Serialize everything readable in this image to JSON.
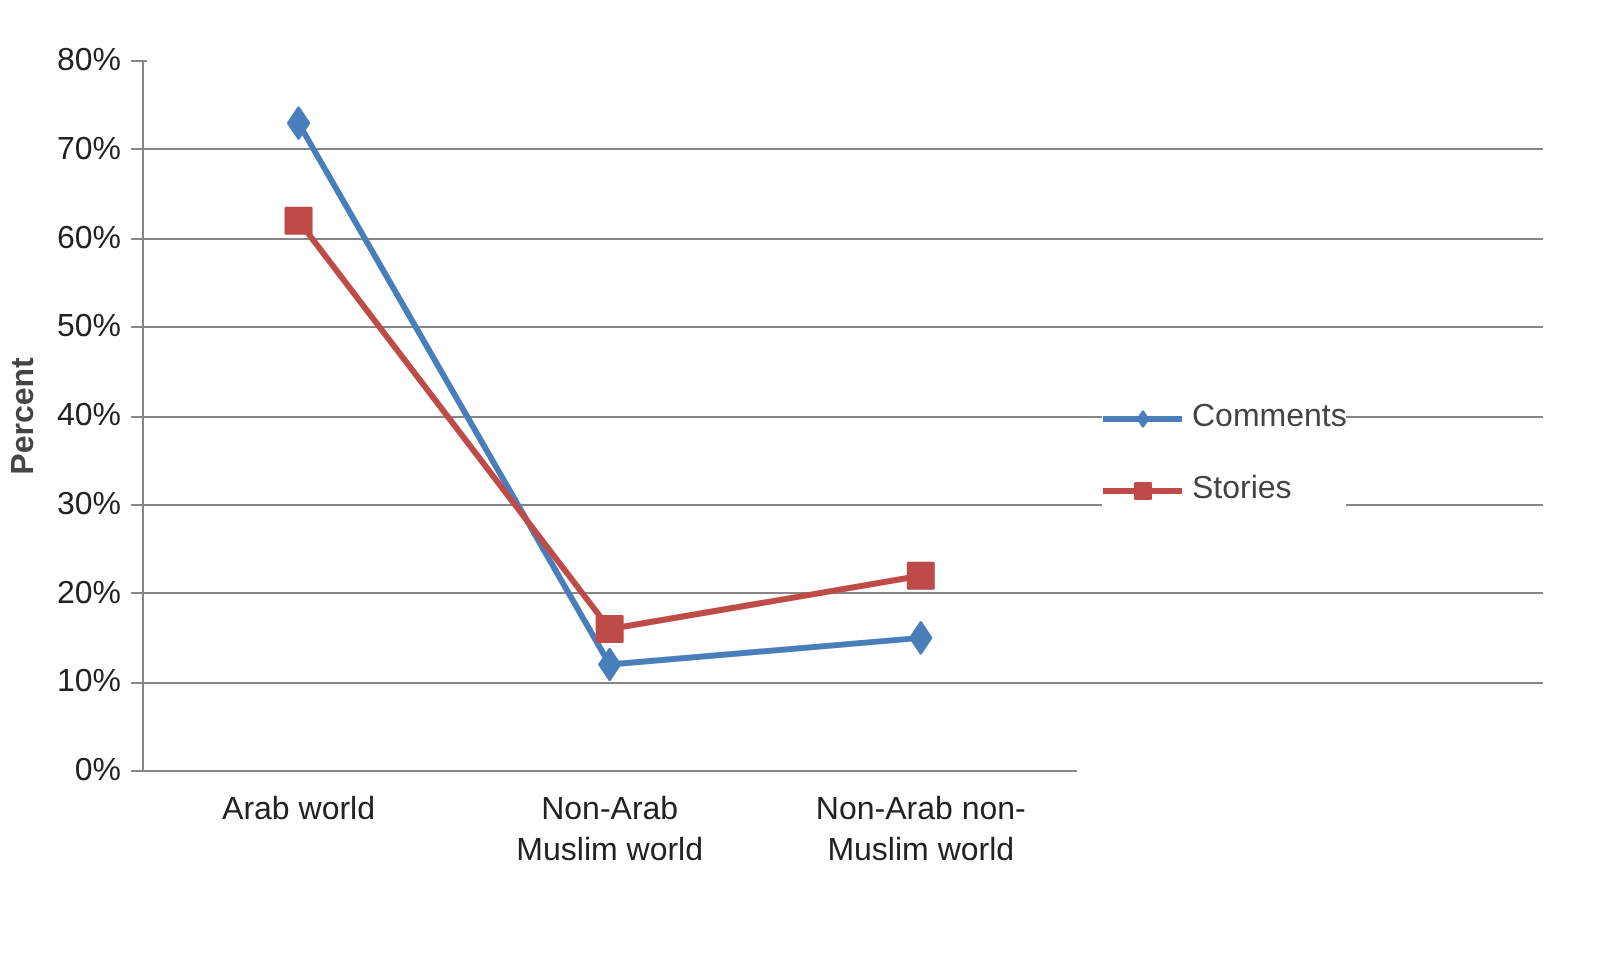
{
  "chart_data": {
    "type": "line",
    "ylabel": "Percent",
    "categories": [
      "Arab world",
      "Non-Arab Muslim world",
      "Non-Arab non-Muslim world"
    ],
    "series": [
      {
        "name": "Comments",
        "color": "#4a7ebb",
        "marker": "diamond",
        "values": [
          73,
          12,
          15
        ]
      },
      {
        "name": "Stories",
        "color": "#be4b48",
        "marker": "square",
        "values": [
          62,
          16,
          22
        ]
      }
    ],
    "ylim": [
      0,
      80
    ],
    "yticks": [
      {
        "value": 0,
        "label": "0%"
      },
      {
        "value": 10,
        "label": "10%"
      },
      {
        "value": 20,
        "label": "20%"
      },
      {
        "value": 30,
        "label": "30%"
      },
      {
        "value": 40,
        "label": "40%"
      },
      {
        "value": 50,
        "label": "50%"
      },
      {
        "value": 60,
        "label": "60%"
      },
      {
        "value": 70,
        "label": "70%"
      },
      {
        "value": 80,
        "label": "80%"
      }
    ],
    "grid": "y",
    "legend": "right",
    "line_style": "solid"
  }
}
